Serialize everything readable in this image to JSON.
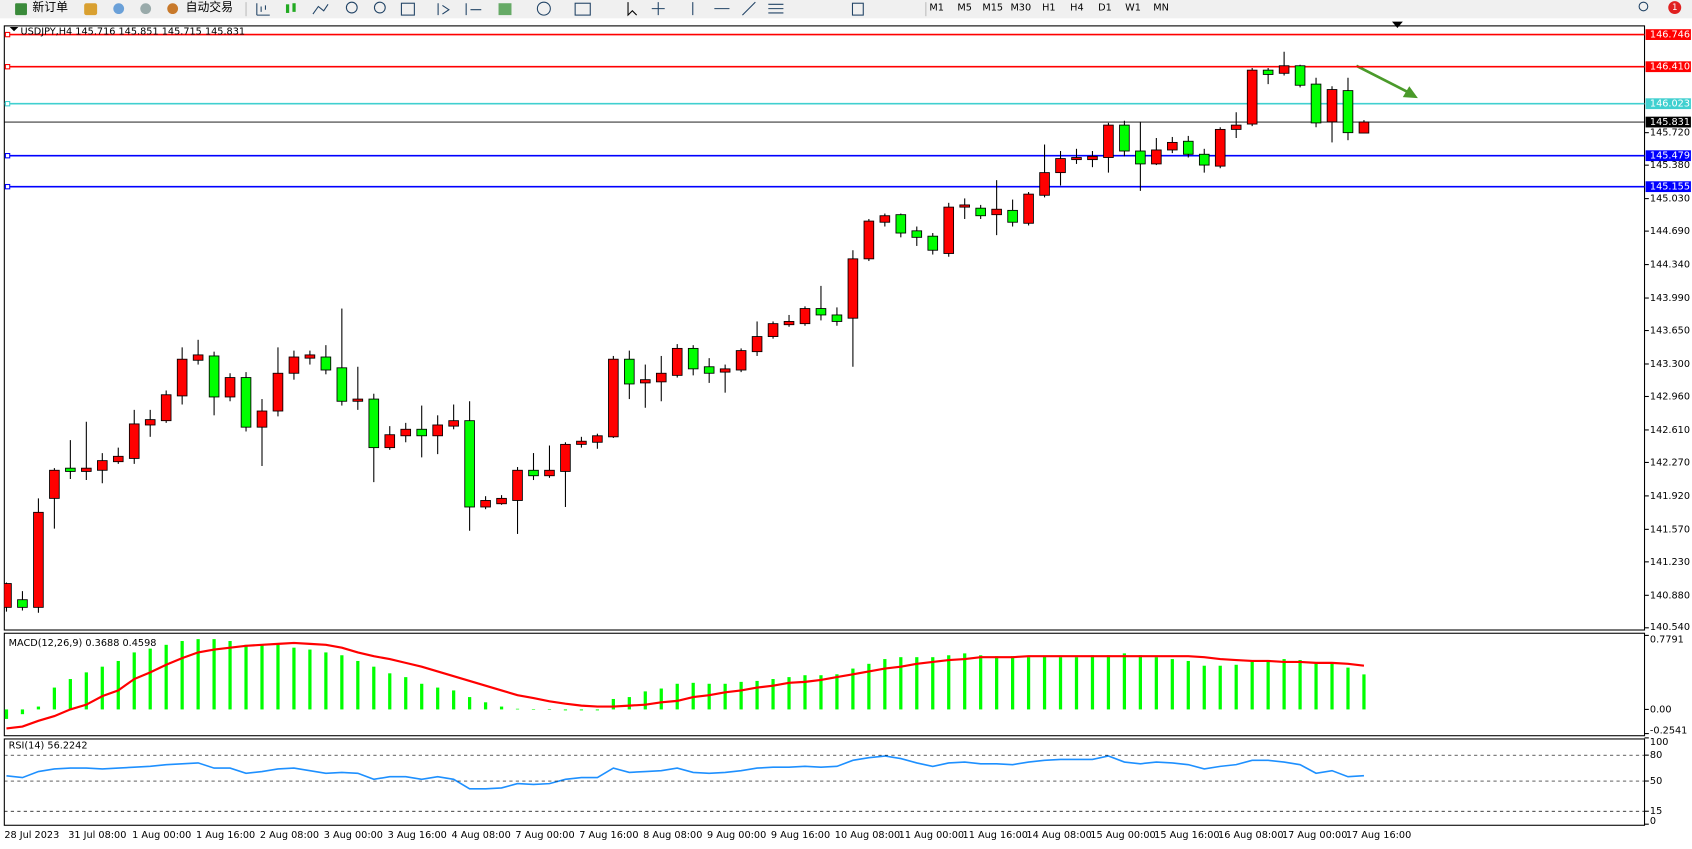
{
  "toolbar": {
    "new_order": "新订单",
    "auto_trading": "自动交易",
    "timeframes": [
      "M1",
      "M5",
      "M15",
      "M30",
      "H1",
      "H4",
      "D1",
      "W1",
      "MN"
    ],
    "badge": "1"
  },
  "chart_data": [
    {
      "type": "candlestick",
      "title": "USDJPY,H4  145.716 145.851 145.715 145.831",
      "categories": [
        "28 Jul 2023",
        null,
        null,
        null,
        "31 Jul 08:00",
        null,
        null,
        null,
        "1 Aug 00:00",
        null,
        null,
        null,
        "1 Aug 16:00",
        null,
        null,
        null,
        "2 Aug 08:00",
        null,
        null,
        null,
        "3 Aug 00:00",
        null,
        null,
        null,
        "3 Aug 16:00",
        null,
        null,
        null,
        "4 Aug 08:00",
        null,
        null,
        null,
        "7 Aug 00:00",
        null,
        null,
        null,
        "7 Aug 16:00",
        null,
        null,
        null,
        "8 Aug 08:00",
        null,
        null,
        null,
        "9 Aug 00:00",
        null,
        null,
        null,
        "9 Aug 16:00",
        null,
        null,
        null,
        "10 Aug 08:00",
        null,
        null,
        null,
        "11 Aug 00:00",
        null,
        null,
        null,
        "11 Aug 16:00",
        null,
        null,
        null,
        "14 Aug 08:00",
        null,
        null,
        null,
        "15 Aug 00:00",
        null,
        null,
        null,
        "15 Aug 16:00",
        null,
        null,
        null,
        "16 Aug 08:00",
        null,
        null,
        null,
        "17 Aug 00:00",
        null,
        null,
        null,
        "17 Aug 16:00",
        null
      ],
      "open": [
        140.754,
        140.834,
        140.754,
        141.894,
        142.21,
        142.176,
        142.188,
        142.278,
        142.312,
        142.662,
        142.707,
        142.966,
        143.339,
        143.384,
        142.955,
        143.158,
        142.639,
        142.808,
        143.203,
        143.361,
        143.373,
        143.26,
        142.91,
        142.933,
        142.425,
        142.549,
        142.617,
        142.549,
        142.65,
        142.707,
        141.804,
        141.838,
        141.872,
        142.188,
        142.131,
        142.176,
        142.459,
        142.481,
        142.538,
        143.35,
        143.102,
        143.113,
        143.181,
        143.463,
        143.271,
        143.215,
        143.237,
        143.429,
        143.587,
        143.711,
        143.722,
        143.88,
        143.813,
        143.779,
        144.4,
        144.783,
        144.862,
        144.693,
        144.637,
        144.456,
        144.941,
        144.93,
        144.862,
        144.907,
        144.772,
        145.065,
        145.302,
        145.438,
        145.438,
        145.46,
        145.799,
        145.528,
        145.393,
        145.539,
        145.63,
        145.494,
        145.37,
        145.754,
        145.81,
        146.374,
        146.341,
        146.42,
        146.228,
        145.833,
        146.16,
        145.716
      ],
      "high": [
        141.014,
        140.924,
        141.894,
        142.21,
        142.504,
        142.696,
        142.368,
        142.425,
        142.82,
        142.82,
        143.023,
        143.474,
        143.553,
        143.429,
        143.203,
        143.215,
        142.933,
        143.474,
        143.44,
        143.44,
        143.497,
        143.88,
        143.271,
        142.989,
        142.65,
        142.684,
        142.865,
        142.763,
        142.876,
        142.91,
        141.917,
        141.928,
        142.222,
        142.368,
        142.447,
        142.481,
        142.538,
        142.571,
        143.384,
        143.44,
        143.294,
        143.384,
        143.508,
        143.497,
        143.361,
        143.294,
        143.463,
        143.745,
        143.745,
        143.813,
        143.903,
        144.117,
        143.892,
        144.49,
        144.817,
        144.874,
        144.874,
        144.738,
        144.67,
        144.986,
        145.032,
        144.964,
        145.223,
        145.02,
        145.099,
        145.596,
        145.528,
        145.551,
        145.528,
        145.822,
        145.844,
        145.833,
        145.664,
        145.675,
        145.686,
        145.551,
        145.776,
        145.934,
        146.397,
        146.397,
        146.566,
        146.431,
        146.295,
        146.205,
        146.295,
        145.851
      ],
      "low": [
        140.709,
        140.721,
        140.698,
        141.578,
        142.097,
        142.086,
        142.052,
        142.255,
        142.255,
        142.538,
        142.684,
        142.876,
        143.294,
        142.763,
        142.91,
        142.594,
        142.233,
        142.752,
        143.136,
        143.294,
        143.192,
        142.865,
        142.82,
        142.064,
        142.402,
        142.481,
        142.323,
        142.357,
        142.617,
        141.556,
        141.781,
        141.827,
        141.522,
        142.086,
        142.109,
        141.804,
        142.425,
        142.413,
        142.526,
        142.933,
        142.842,
        142.91,
        143.158,
        143.181,
        143.102,
        143.0,
        143.215,
        143.384,
        143.565,
        143.689,
        143.7,
        143.756,
        143.7,
        143.271,
        144.377,
        144.738,
        144.625,
        144.535,
        144.445,
        144.422,
        144.817,
        144.817,
        144.648,
        144.738,
        144.749,
        145.043,
        145.167,
        145.393,
        145.359,
        145.302,
        145.472,
        145.111,
        145.381,
        145.506,
        145.46,
        145.302,
        145.348,
        145.664,
        145.788,
        146.228,
        146.318,
        146.194,
        145.776,
        145.618,
        145.641,
        145.715
      ],
      "close": [
        141.003,
        140.754,
        141.748,
        142.188,
        142.176,
        142.21,
        142.289,
        142.334,
        142.673,
        142.718,
        142.978,
        143.35,
        143.395,
        142.955,
        143.158,
        142.639,
        142.808,
        143.203,
        143.373,
        143.395,
        143.237,
        142.91,
        142.933,
        142.425,
        142.56,
        142.617,
        142.549,
        142.662,
        142.707,
        141.804,
        141.872,
        141.894,
        142.188,
        142.131,
        142.188,
        142.459,
        142.492,
        142.549,
        143.35,
        143.091,
        143.136,
        143.203,
        143.463,
        143.249,
        143.203,
        143.249,
        143.44,
        143.587,
        143.722,
        143.745,
        143.88,
        143.813,
        143.745,
        144.4,
        144.795,
        144.851,
        144.67,
        144.625,
        144.49,
        144.941,
        144.964,
        144.851,
        144.919,
        144.783,
        145.077,
        145.302,
        145.449,
        145.46,
        145.472,
        145.799,
        145.528,
        145.393,
        145.539,
        145.618,
        145.494,
        145.381,
        145.754,
        145.799,
        146.374,
        146.329,
        146.42,
        146.216,
        145.822,
        146.171,
        145.72,
        145.831
      ],
      "up_color": "#ff0000",
      "down_color": "#00ff00",
      "wick_color": "#000000",
      "grid": false,
      "ylim": [
        140.517,
        146.837
      ],
      "yticks": [
        {
          "value": 145.72,
          "label": "145.720"
        },
        {
          "value": 145.38,
          "label": "145.380"
        },
        {
          "value": 145.03,
          "label": "145.030"
        },
        {
          "value": 144.69,
          "label": "144.690"
        },
        {
          "value": 144.34,
          "label": "144.340"
        },
        {
          "value": 143.99,
          "label": "143.990"
        },
        {
          "value": 143.65,
          "label": "143.650"
        },
        {
          "value": 143.3,
          "label": "143.300"
        },
        {
          "value": 142.96,
          "label": "142.960"
        },
        {
          "value": 142.61,
          "label": "142.610"
        },
        {
          "value": 142.27,
          "label": "142.270"
        },
        {
          "value": 141.92,
          "label": "141.920"
        },
        {
          "value": 141.57,
          "label": "141.570"
        },
        {
          "value": 141.23,
          "label": "141.230"
        },
        {
          "value": 140.88,
          "label": "140.880"
        },
        {
          "value": 140.54,
          "label": "140.540"
        }
      ],
      "levels": [
        {
          "value": 146.746,
          "color": "#ff0000"
        },
        {
          "value": {
            "value": 146.41,
            "label": "146.410"
          },
          "color": "#ff0000"
        },
        {
          "value": 146.023,
          "color": "#40d0d0"
        },
        {
          "value": 145.479,
          "color": "#0000ff"
        },
        {
          "value": 145.155,
          "color": "#0000ff"
        }
      ],
      "price_line": 145.831
    },
    {
      "type": "macd",
      "title": "MACD(12,26,9) 0.3688 0.4598",
      "values": [
        -0.1,
        -0.05,
        0.03,
        0.23,
        0.32,
        0.39,
        0.45,
        0.51,
        0.6,
        0.64,
        0.68,
        0.72,
        0.74,
        0.74,
        0.72,
        0.68,
        0.68,
        0.68,
        0.65,
        0.63,
        0.6,
        0.57,
        0.51,
        0.45,
        0.38,
        0.34,
        0.27,
        0.23,
        0.2,
        0.13,
        0.075,
        0.03,
        0.007,
        0.0,
        -0.005,
        -0.01,
        -0.01,
        -0.01,
        0.11,
        0.13,
        0.19,
        0.22,
        0.27,
        0.28,
        0.27,
        0.27,
        0.29,
        0.3,
        0.32,
        0.34,
        0.36,
        0.36,
        0.37,
        0.43,
        0.48,
        0.53,
        0.55,
        0.55,
        0.55,
        0.57,
        0.59,
        0.57,
        0.56,
        0.56,
        0.55,
        0.56,
        0.55,
        0.55,
        0.57,
        0.57,
        0.59,
        0.57,
        0.55,
        0.53,
        0.51,
        0.46,
        0.46,
        0.47,
        0.52,
        0.52,
        0.53,
        0.52,
        0.49,
        0.49,
        0.44,
        0.3688
      ],
      "signal": [
        -0.2,
        -0.18,
        -0.12,
        -0.07,
        0.0,
        0.05,
        0.14,
        0.2,
        0.32,
        0.39,
        0.47,
        0.54,
        0.6,
        0.63,
        0.65,
        0.67,
        0.68,
        0.69,
        0.7,
        0.69,
        0.68,
        0.65,
        0.6,
        0.56,
        0.53,
        0.49,
        0.45,
        0.4,
        0.35,
        0.3,
        0.25,
        0.2,
        0.15,
        0.12,
        0.085,
        0.06,
        0.04,
        0.03,
        0.03,
        0.04,
        0.05,
        0.075,
        0.09,
        0.13,
        0.15,
        0.18,
        0.2,
        0.23,
        0.25,
        0.28,
        0.29,
        0.31,
        0.34,
        0.37,
        0.4,
        0.43,
        0.45,
        0.48,
        0.5,
        0.52,
        0.53,
        0.55,
        0.55,
        0.55,
        0.56,
        0.56,
        0.56,
        0.56,
        0.56,
        0.56,
        0.56,
        0.56,
        0.56,
        0.56,
        0.56,
        0.55,
        0.53,
        0.52,
        0.51,
        0.51,
        0.5,
        0.5,
        0.49,
        0.49,
        0.48,
        0.4598
      ],
      "color": "#00ff00",
      "signal_color": "#ff0000",
      "grid": false,
      "ylim": [
        -0.2541,
        0.7791
      ],
      "yticks": [
        0.7791,
        {
          "value": 0,
          "label": "0.00"
        },
        -0.2541
      ]
    },
    {
      "type": "line",
      "title": "RSI(14) 56.2242",
      "values": [
        56,
        54,
        61,
        64,
        65,
        65,
        64,
        65,
        66,
        67,
        69,
        70,
        71,
        65,
        65,
        59,
        61,
        64,
        65,
        62,
        59,
        60,
        59,
        52,
        55,
        55,
        52,
        55,
        52,
        41,
        41,
        42,
        47,
        46,
        47,
        52,
        54,
        54,
        65,
        60,
        61,
        62,
        65,
        60,
        59,
        60,
        62,
        65,
        66,
        66,
        67,
        66,
        67,
        74,
        77,
        79,
        76,
        71,
        67,
        71,
        72,
        70,
        70,
        69,
        72,
        74,
        75,
        75,
        75,
        79,
        72,
        70,
        72,
        71,
        69,
        64,
        67,
        69,
        74,
        74,
        72,
        69,
        59,
        62,
        55,
        56.2242
      ],
      "color": "#1e90ff",
      "grid": true,
      "ylim": [
        0,
        100
      ],
      "yticks": [
        100,
        80,
        50,
        15,
        0
      ]
    }
  ]
}
